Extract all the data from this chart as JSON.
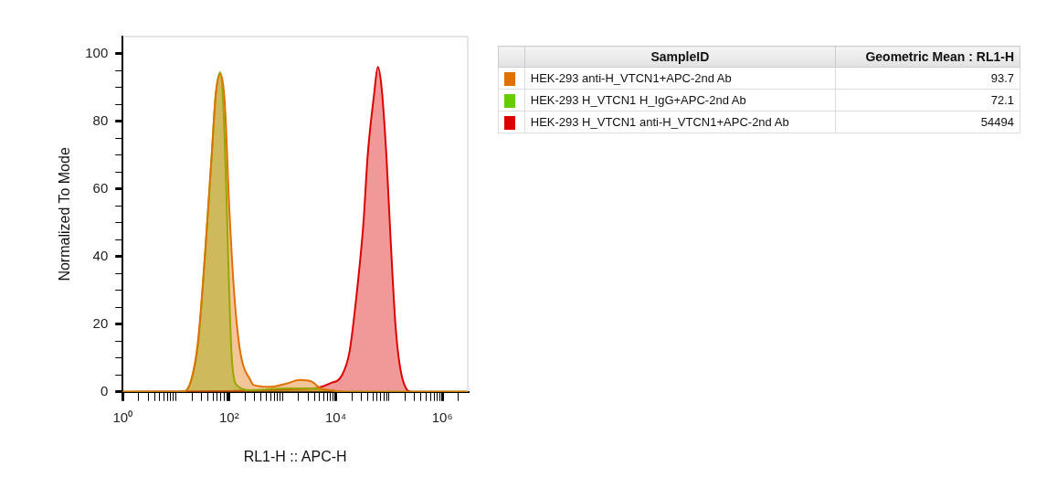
{
  "chart_data": {
    "type": "area",
    "xlabel": "RL1-H :: APC-H",
    "ylabel": "Normalized To Mode",
    "log": "x",
    "legend": "right",
    "legend_title": "SampleID",
    "annotations": [
      "Geometric Mean : RL1-H",
      "93.7",
      "72.1",
      "54494"
    ],
    "xlim": [
      1,
      3000000
    ],
    "ylim": [
      0,
      105
    ],
    "xticks": [
      {
        "value": 1,
        "label": "10⁰"
      },
      {
        "value": 2,
        "label": null
      },
      {
        "value": 3,
        "label": null
      },
      {
        "value": 4,
        "label": null
      },
      {
        "value": 5,
        "label": null
      },
      {
        "value": 6,
        "label": null
      },
      {
        "value": 7,
        "label": null
      },
      {
        "value": 8,
        "label": null
      },
      {
        "value": 9,
        "label": null
      },
      {
        "value": 10,
        "label": null
      },
      {
        "value": 20,
        "label": null
      },
      {
        "value": 30,
        "label": null
      },
      {
        "value": 40,
        "label": null
      },
      {
        "value": 50,
        "label": null
      },
      {
        "value": 60,
        "label": null
      },
      {
        "value": 70,
        "label": null
      },
      {
        "value": 80,
        "label": null
      },
      {
        "value": 90,
        "label": null
      },
      {
        "value": 100,
        "label": "10²"
      },
      {
        "value": 200,
        "label": null
      },
      {
        "value": 300,
        "label": null
      },
      {
        "value": 400,
        "label": null
      },
      {
        "value": 500,
        "label": null
      },
      {
        "value": 600,
        "label": null
      },
      {
        "value": 700,
        "label": null
      },
      {
        "value": 800,
        "label": null
      },
      {
        "value": 900,
        "label": null
      },
      {
        "value": 1000,
        "label": null
      },
      {
        "value": 2000,
        "label": null
      },
      {
        "value": 3000,
        "label": null
      },
      {
        "value": 4000,
        "label": null
      },
      {
        "value": 5000,
        "label": null
      },
      {
        "value": 6000,
        "label": null
      },
      {
        "value": 7000,
        "label": null
      },
      {
        "value": 8000,
        "label": null
      },
      {
        "value": 9000,
        "label": null
      },
      {
        "value": 10000,
        "label": "10⁴"
      },
      {
        "value": 20000,
        "label": null
      },
      {
        "value": 30000,
        "label": null
      },
      {
        "value": 40000,
        "label": null
      },
      {
        "value": 50000,
        "label": null
      },
      {
        "value": 60000,
        "label": null
      },
      {
        "value": 70000,
        "label": null
      },
      {
        "value": 80000,
        "label": null
      },
      {
        "value": 90000,
        "label": null
      },
      {
        "value": 100000,
        "label": null
      },
      {
        "value": 200000,
        "label": null
      },
      {
        "value": 300000,
        "label": null
      },
      {
        "value": 400000,
        "label": null
      },
      {
        "value": 500000,
        "label": null
      },
      {
        "value": 600000,
        "label": null
      },
      {
        "value": 700000,
        "label": null
      },
      {
        "value": 800000,
        "label": null
      },
      {
        "value": 900000,
        "label": null
      },
      {
        "value": 1000000,
        "label": "10⁶"
      },
      {
        "value": 2000000,
        "label": null
      }
    ],
    "yticks": [
      0,
      {
        "value": 5,
        "label": null
      },
      {
        "value": 10,
        "label": null
      },
      {
        "value": 15,
        "label": null
      },
      20,
      {
        "value": 25,
        "label": null
      },
      {
        "value": 30,
        "label": null
      },
      {
        "value": 35,
        "label": null
      },
      40,
      {
        "value": 45,
        "label": null
      },
      {
        "value": 50,
        "label": null
      },
      {
        "value": 55,
        "label": null
      },
      60,
      {
        "value": 65,
        "label": null
      },
      {
        "value": 70,
        "label": null
      },
      {
        "value": 75,
        "label": null
      },
      80,
      {
        "value": 85,
        "label": null
      },
      {
        "value": 90,
        "label": null
      },
      {
        "value": 95,
        "label": null
      },
      100
    ],
    "series": [
      {
        "name": "HEK-293 anti-H_VTCN1+APC-2nd Ab",
        "color": "#e07000",
        "x": [
          1,
          13,
          19,
          26,
          35,
          47,
          56,
          69,
          83,
          100,
          123,
          151,
          182,
          240,
          288,
          562,
          1230,
          2089,
          3548,
          5248,
          7762,
          15136,
          3000000
        ],
        "values": [
          0,
          0,
          3,
          15,
          40,
          70,
          88,
          94,
          85,
          55,
          30,
          15,
          8,
          4,
          2,
          1.5,
          2.5,
          3.5,
          3,
          1,
          0.5,
          0,
          0
        ]
      },
      {
        "name": "HEK-293 H_VTCN1 H_IgG+APC-2nd Ab",
        "color": "#66cc00",
        "x": [
          1,
          13,
          19,
          26,
          35,
          47,
          56,
          68,
          80,
          90,
          100,
          110,
          123,
          151,
          240,
          1230,
          3548,
          7762,
          15136,
          3000000
        ],
        "values": [
          0,
          0,
          3,
          14,
          40,
          70,
          88,
          94.5,
          80,
          55,
          30,
          12,
          4,
          1.5,
          0.5,
          1,
          1,
          0.5,
          0,
          0
        ]
      },
      {
        "name": "HEK-293 H_VTCN1 anti-H_VTCN1+APC-2nd Ab",
        "color": "#dd0000",
        "x": [
          1,
          3548,
          7762,
          13183,
          18197,
          25119,
          33113,
          39811,
          52481,
          61660,
          72444,
          89125,
          107152,
          131826,
          158489,
          208930,
          269153,
          3000000
        ],
        "values": [
          0,
          1,
          2.5,
          5,
          12,
          30,
          50,
          70,
          88,
          96,
          90,
          70,
          45,
          20,
          8,
          1,
          0,
          0
        ]
      }
    ]
  }
}
